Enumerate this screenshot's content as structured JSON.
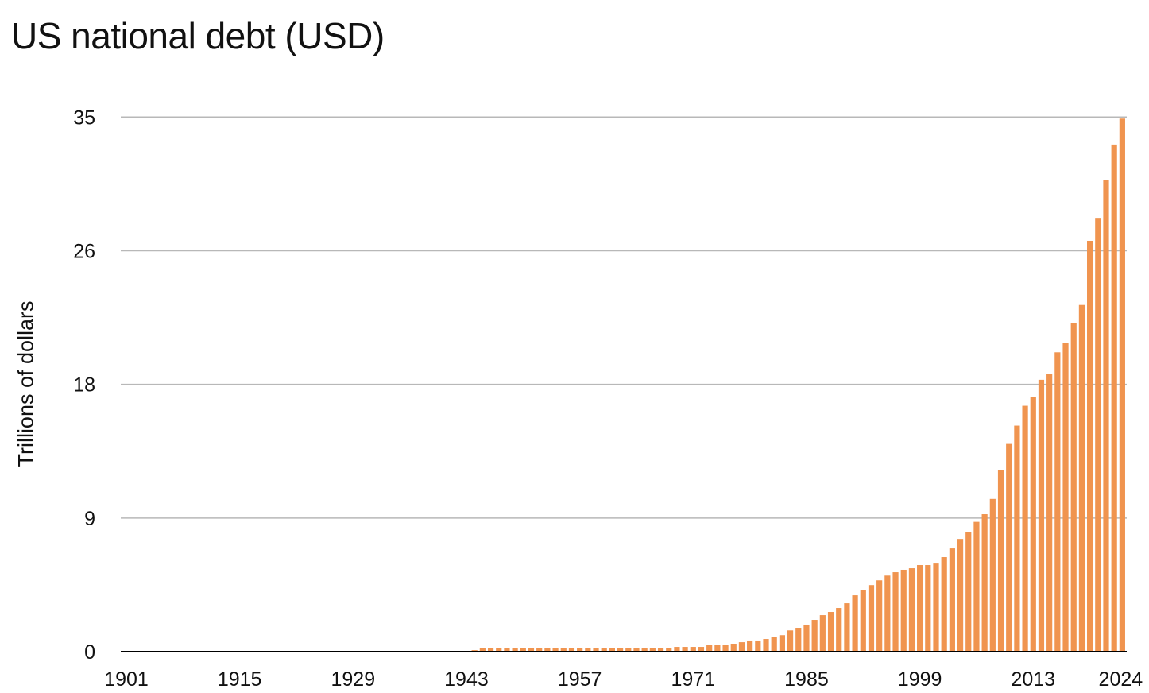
{
  "chart_data": {
    "type": "bar",
    "title": "US national debt (USD)",
    "xlabel": "",
    "ylabel": "Trillions of dollars",
    "ylim": [
      0,
      35
    ],
    "y_ticks": [
      0,
      8.75,
      17.5,
      26.25,
      35
    ],
    "y_tick_labels": [
      "0",
      "9",
      "18",
      "26",
      "35"
    ],
    "x_tick_labels": [
      "1901",
      "1915",
      "1929",
      "1943",
      "1957",
      "1971",
      "1985",
      "1999",
      "2013",
      "2024"
    ],
    "x_range": [
      1901,
      2024
    ],
    "grid": "horizontal",
    "bar_color": "#F0944F",
    "grid_color": "#B8B8B8",
    "axis_color": "#000000",
    "categories_start": 1901,
    "categories_end": 2024,
    "values": [
      0,
      0,
      0,
      0,
      0,
      0,
      0,
      0,
      0,
      0,
      0,
      0,
      0,
      0,
      0,
      0,
      0,
      0,
      0,
      0,
      0,
      0,
      0,
      0,
      0,
      0,
      0,
      0,
      0,
      0,
      0,
      0,
      0,
      0,
      0,
      0,
      0,
      0,
      0,
      0,
      0,
      0,
      0,
      0.1,
      0.21,
      0.21,
      0.21,
      0.21,
      0.21,
      0.21,
      0.21,
      0.21,
      0.21,
      0.21,
      0.21,
      0.21,
      0.21,
      0.21,
      0.21,
      0.21,
      0.21,
      0.21,
      0.21,
      0.21,
      0.21,
      0.21,
      0.21,
      0.21,
      0.31,
      0.31,
      0.31,
      0.31,
      0.42,
      0.42,
      0.42,
      0.52,
      0.62,
      0.73,
      0.73,
      0.83,
      0.94,
      1.08,
      1.39,
      1.56,
      1.77,
      2.08,
      2.39,
      2.6,
      2.86,
      3.17,
      3.69,
      4.05,
      4.36,
      4.67,
      4.98,
      5.2,
      5.36,
      5.46,
      5.67,
      5.67,
      5.77,
      6.19,
      6.76,
      7.38,
      7.85,
      8.5,
      9.0,
      10.0,
      11.9,
      13.6,
      14.8,
      16.1,
      16.7,
      17.8,
      18.2,
      19.6,
      20.2,
      21.5,
      22.7,
      26.9,
      28.4,
      30.9,
      33.2,
      34.9
    ]
  }
}
